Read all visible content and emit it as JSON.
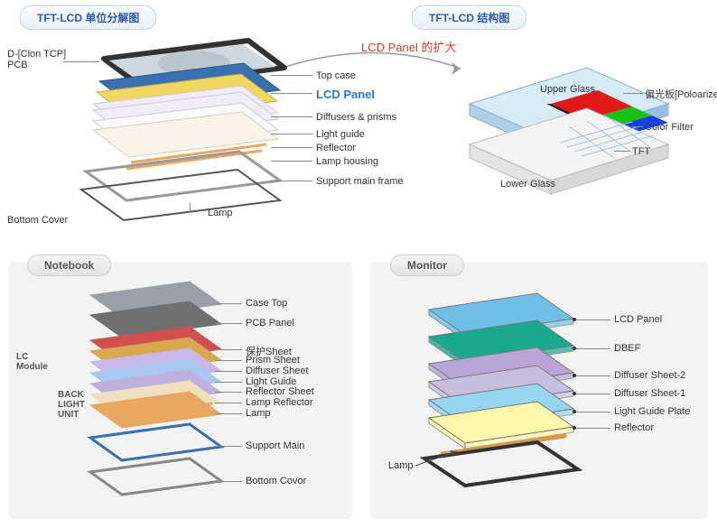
{
  "tabs": {
    "exploded": "TFT-LCD 单位分解图",
    "structure": "TFT-LCD 结构图",
    "notebook": "Notebook",
    "monitor": "Monitor"
  },
  "arrow_text": "LCD Panel 的扩大",
  "exploded": {
    "left_top": "D-[Clon TCP]\nPCB",
    "left_bottom": "Bottom Cover",
    "right": [
      "Top case",
      "LCD Panel",
      "Diffusers & prisms",
      "Light guide",
      "Reflector",
      "Lamp housing",
      "Support main frame"
    ],
    "center_label": "Lamp"
  },
  "structure": {
    "upper_glass": "Upper Glass",
    "lower_glass": "Lower Glass",
    "polarizer": "偏光板[Poloarizer]",
    "color_filter": "Color Filter",
    "tft": "TFT"
  },
  "notebook": {
    "side_top": "LC\nModule",
    "side_bottom": "BACK\nLIGHT\nUNIT",
    "layers": [
      "Case Top",
      "PCB Panel",
      "保护Sheet",
      "Prism Sheet",
      "Diffuser Sheet",
      "Light Guide",
      "Reflector Sheet",
      "Lamp Reflector",
      "Lamp",
      "Support Main",
      "Bottom Covor"
    ]
  },
  "monitor": {
    "lamp_label": "Lamp",
    "layers": [
      "LCD Panel",
      "DBEF",
      "Diffuser Sheet-2",
      "Diffuser Sheet-1",
      "Light Guide Plate",
      "Reflector"
    ],
    "colors": [
      "#6fc0e8",
      "#1aa890",
      "#b9a6d6",
      "#c8bfe0",
      "#97d6f0",
      "#fff8a8",
      "#3a3a3a"
    ]
  },
  "colors": {
    "rgb_r": "#e11919",
    "rgb_g": "#19c219",
    "rgb_b": "#1a3ee0",
    "case_gray": "#9aa0a6",
    "pcb": "#6b6b6b",
    "frame": "#a0a0a0",
    "lcd_blue": "#3a6fb0",
    "diffuser": "#d0d8f0",
    "lightguide": "#e8e0f0",
    "reflector": "#f0e8d8",
    "lamp_orange": "#e8a860",
    "support": "#b0b0b0",
    "notebook_layers": [
      "#9aa0a6",
      "#707070",
      "#d05050",
      "#d8a850",
      "#c8b8e8",
      "#a8c8f0",
      "#c0b0e0",
      "#f0e0c0",
      "#e8a860",
      "#3a6fb0",
      "#888"
    ]
  }
}
